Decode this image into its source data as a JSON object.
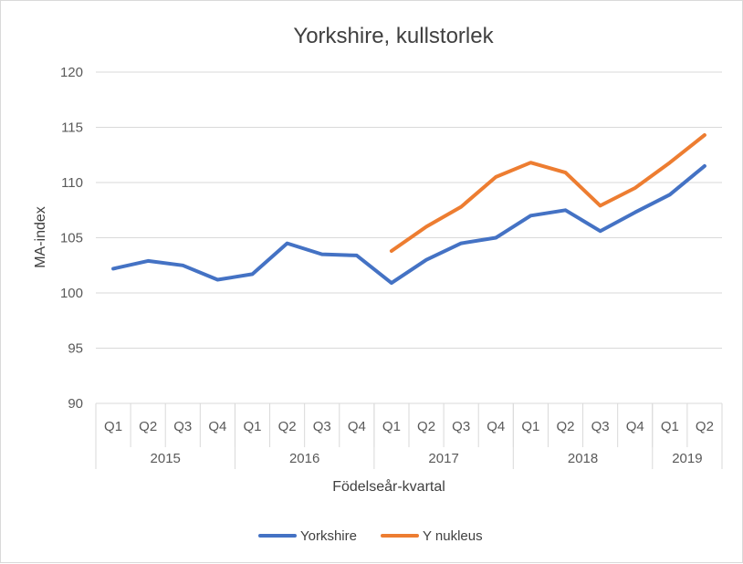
{
  "chart_data": {
    "type": "line",
    "title": "Yorkshire, kullstorlek",
    "xlabel": "Födelseår-kvartal",
    "ylabel": "MA-index",
    "ylim": [
      90,
      120
    ],
    "yticks": [
      "90",
      "95",
      "100",
      "105",
      "110",
      "115",
      "120"
    ],
    "ytick_values": [
      90,
      95,
      100,
      105,
      110,
      115,
      120
    ],
    "grid": true,
    "legend_position": "bottom",
    "quarters": [
      "Q1",
      "Q2",
      "Q3",
      "Q4",
      "Q1",
      "Q2",
      "Q3",
      "Q4",
      "Q1",
      "Q2",
      "Q3",
      "Q4",
      "Q1",
      "Q2",
      "Q3",
      "Q4",
      "Q1",
      "Q2"
    ],
    "years": [
      {
        "label": "2015",
        "count": 4
      },
      {
        "label": "2016",
        "count": 4
      },
      {
        "label": "2017",
        "count": 4
      },
      {
        "label": "2018",
        "count": 4
      },
      {
        "label": "2019",
        "count": 2
      }
    ],
    "series": [
      {
        "name": "Yorkshire",
        "color": "#4472c4",
        "values": [
          102.2,
          102.9,
          102.5,
          101.2,
          101.7,
          104.5,
          103.5,
          103.4,
          100.9,
          103.0,
          104.5,
          105.0,
          107.0,
          107.5,
          105.6,
          107.3,
          108.9,
          111.5
        ]
      },
      {
        "name": "Y nukleus",
        "color": "#ed7d31",
        "values": [
          null,
          null,
          null,
          null,
          null,
          null,
          null,
          null,
          103.8,
          106.0,
          107.8,
          110.5,
          111.8,
          110.9,
          107.9,
          109.5,
          111.8,
          114.3
        ]
      }
    ]
  }
}
